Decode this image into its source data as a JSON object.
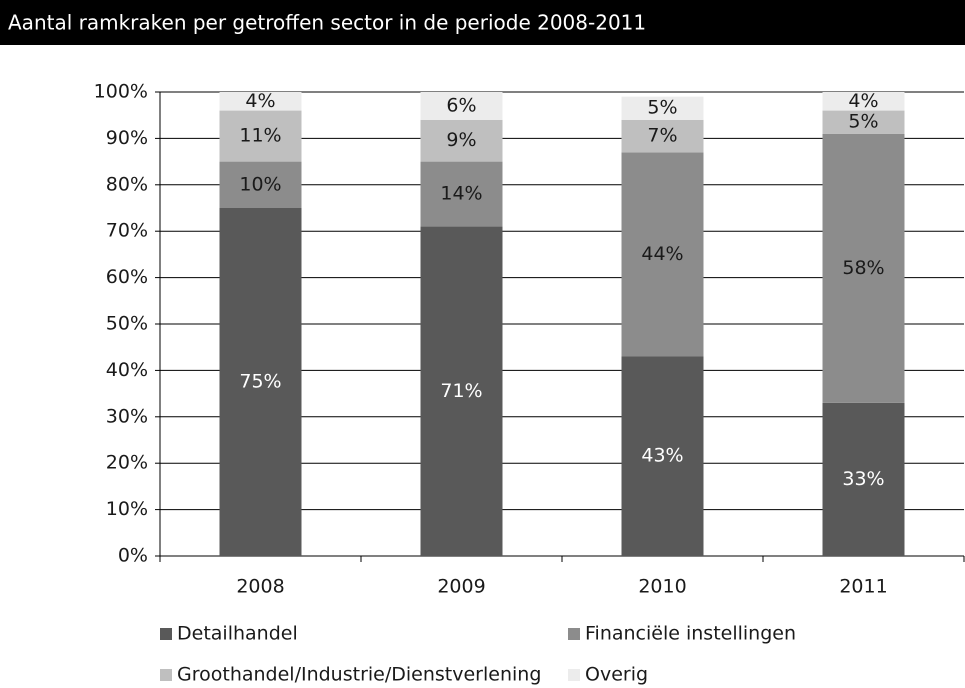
{
  "chart_data": {
    "type": "stacked_bar",
    "title": "Aantal ramkraken per getroffen sector in de periode 2008-2011",
    "categories": [
      "2008",
      "2009",
      "2010",
      "2011"
    ],
    "series": [
      {
        "name": "Detailhandel",
        "color": "#595959",
        "values": [
          75,
          71,
          43,
          33
        ],
        "value_labels": [
          "75%",
          "71%",
          "43%",
          "33%"
        ]
      },
      {
        "name": "Financiële instellingen",
        "color": "#8c8c8c",
        "values": [
          10,
          14,
          44,
          58
        ],
        "value_labels": [
          "10%",
          "14%",
          "44%",
          "58%"
        ]
      },
      {
        "name": "Groothandel/Industrie/Dienstverlening",
        "color": "#bfbfbf",
        "values": [
          11,
          9,
          7,
          5
        ],
        "value_labels": [
          "11%",
          "9%",
          "7%",
          "5%"
        ]
      },
      {
        "name": "Overig",
        "color": "#ececec",
        "values": [
          4,
          6,
          5,
          4
        ],
        "value_labels": [
          "4%",
          "6%",
          "5%",
          "4%"
        ]
      }
    ],
    "ylim": [
      0,
      100
    ],
    "yticks": [
      {
        "value": 0,
        "label": "0%"
      },
      {
        "value": 10,
        "label": "10%"
      },
      {
        "value": 20,
        "label": "20%"
      },
      {
        "value": 30,
        "label": "30%"
      },
      {
        "value": 40,
        "label": "40%"
      },
      {
        "value": 50,
        "label": "50%"
      },
      {
        "value": 60,
        "label": "60%"
      },
      {
        "value": 70,
        "label": "70%"
      },
      {
        "value": 80,
        "label": "80%"
      },
      {
        "value": 90,
        "label": "90%"
      },
      {
        "value": 100,
        "label": "100%"
      }
    ],
    "grid": true
  }
}
